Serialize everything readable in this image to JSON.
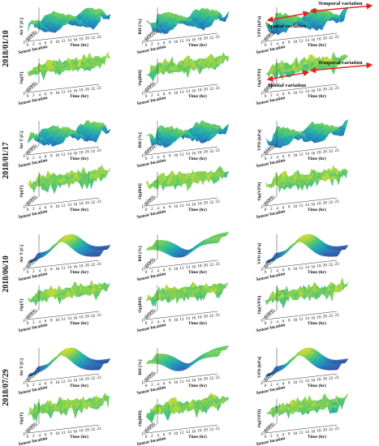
{
  "chart_data": {
    "type": "surface",
    "dates": [
      "2018/01/10",
      "2018/01/17",
      "2018/06/10",
      "2018/07/29"
    ],
    "panel_rows": [
      {
        "date_index": 0,
        "zlabels": [
          "Air T [C]",
          "RH [%]",
          "VPD [kPa]"
        ]
      },
      {
        "date_index": 0,
        "zlabels": [
          "Op[T]",
          "Op[RH]",
          "Op[VPD]"
        ]
      },
      {
        "date_index": 1,
        "zlabels": [
          "Air T [C]",
          "RH [%]",
          "VPD [kPa]"
        ]
      },
      {
        "date_index": 1,
        "zlabels": [
          "Op[T]",
          "Op[RH]",
          "Op[VPD]"
        ]
      },
      {
        "date_index": 2,
        "zlabels": [
          "Air T [C]",
          "RH [%]",
          "VPD [kPa]"
        ]
      },
      {
        "date_index": 2,
        "zlabels": [
          "Op[T]",
          "Op[RH]",
          "Op[VPD]"
        ]
      },
      {
        "date_index": 3,
        "zlabels": [
          "Air T [C]",
          "RH [%]",
          "VPD [kPa]"
        ]
      },
      {
        "date_index": 3,
        "zlabels": [
          "Op[T]",
          "Op[RH]",
          "Op[VPD]"
        ]
      }
    ],
    "xlabel": "Sensor location",
    "ylabel": "Time (hr)",
    "time_ticks": [
      "0",
      "2",
      "4",
      "6",
      "8",
      "10",
      "12",
      "14",
      "16",
      "18",
      "20",
      "22",
      "23"
    ],
    "sensor_ticks": [
      "1",
      "5",
      "9",
      "13",
      "17",
      "21",
      "25",
      "29"
    ],
    "annotations": [
      "Spatial variation",
      "Temporal variation"
    ],
    "colormap": [
      "#3b1d7d",
      "#2f5fb0",
      "#1f8fbf",
      "#20b3a5",
      "#56c86a",
      "#b6d93a",
      "#f2e31b"
    ],
    "annotation_arrow_color": "#e8201a"
  }
}
